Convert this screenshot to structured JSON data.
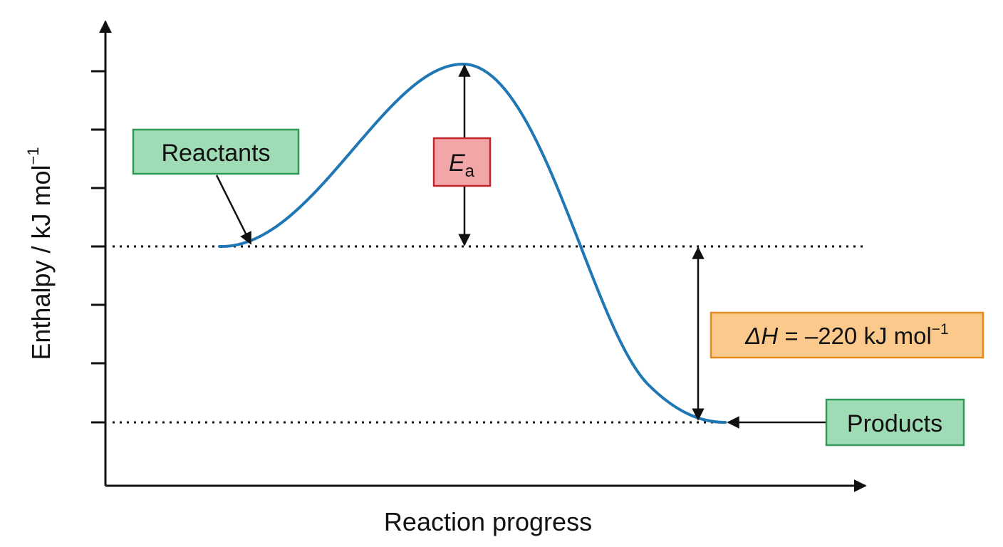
{
  "axes": {
    "ylabel_main": "Enthalpy / kJ mol",
    "ylabel_sup": "−1",
    "xlabel": "Reaction progress"
  },
  "labels": {
    "reactants": "Reactants",
    "products": "Products",
    "ea_symbol": "E",
    "ea_subscript": "a",
    "dh_symbol": "ΔH",
    "dh_value": " = –220 kJ mol",
    "dh_sup": "−1"
  },
  "colors": {
    "curve": "#1f77b4",
    "reactants_box": "#9fdcb5",
    "products_box": "#9fdcb5",
    "ea_box": "#f2a6a8",
    "dh_box": "#fbc98c"
  }
}
